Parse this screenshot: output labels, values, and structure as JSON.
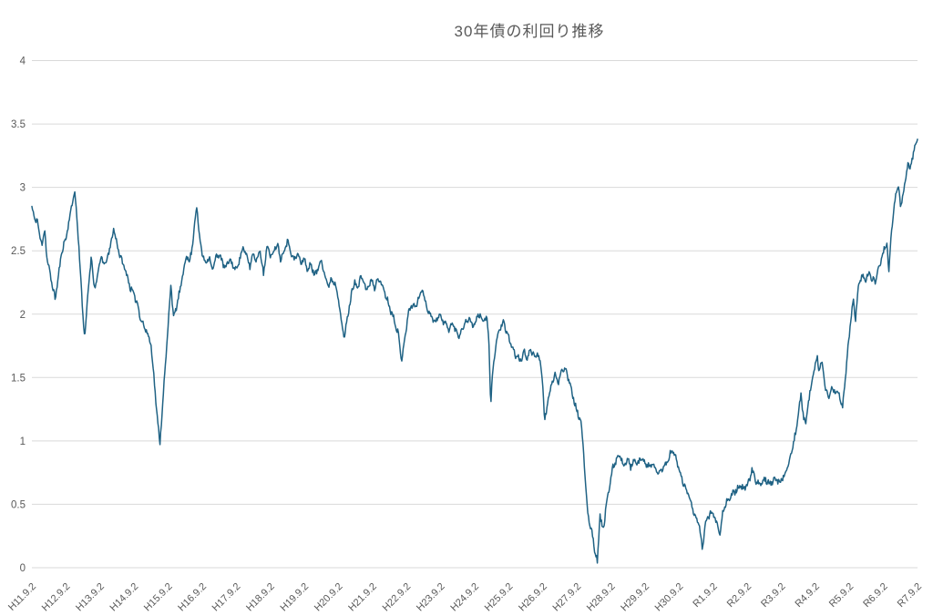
{
  "chart_data": {
    "type": "line",
    "title": "30年債の利回り推移",
    "xlabel": "",
    "ylabel": "",
    "ylim": [
      0,
      4
    ],
    "grid": "horizontal",
    "legend": "none",
    "line_color": "#1F6284",
    "gridline_color": "#D9D9D9",
    "label_color": "#595959",
    "background_color": "#FFFFFF",
    "noise_amplitude": 0.02,
    "y_ticks": [
      0,
      0.5,
      1,
      1.5,
      2,
      2.5,
      3,
      3.5,
      4
    ],
    "y_tick_labels": [
      "0",
      "0.5",
      "1",
      "1.5",
      "2",
      "2.5",
      "3",
      "3.5",
      "4"
    ],
    "x_categories": [
      "H11.9.2",
      "H12.9.2",
      "H13.9.2",
      "H14.9.2",
      "H15.9.2",
      "H16.9.2",
      "H17.9.2",
      "H18.9.2",
      "H19.9.2",
      "H20.9.2",
      "H21.9.2",
      "H22.9.2",
      "H23.9.2",
      "H24.9.2",
      "H25.9.2",
      "H26.9.2",
      "H27.9.2",
      "H28.9.2",
      "H29.9.2",
      "H30.9.2",
      "R1.9.2",
      "R2.9.2",
      "R3.9.2",
      "R4.9.2",
      "R5.9.2",
      "R6.9.2",
      "R7.9.2"
    ],
    "series": [
      {
        "points": [
          [
            0,
            2.85
          ],
          [
            0.08,
            2.74
          ],
          [
            0.15,
            2.76
          ],
          [
            0.22,
            2.62
          ],
          [
            0.3,
            2.56
          ],
          [
            0.38,
            2.66
          ],
          [
            0.45,
            2.42
          ],
          [
            0.55,
            2.3
          ],
          [
            0.62,
            2.2
          ],
          [
            0.68,
            2.12
          ],
          [
            0.78,
            2.3
          ],
          [
            0.88,
            2.5
          ],
          [
            1.0,
            2.6
          ],
          [
            1.1,
            2.75
          ],
          [
            1.2,
            2.9
          ],
          [
            1.25,
            2.97
          ],
          [
            1.32,
            2.78
          ],
          [
            1.42,
            2.35
          ],
          [
            1.5,
            2.0
          ],
          [
            1.55,
            1.78
          ],
          [
            1.65,
            2.2
          ],
          [
            1.75,
            2.45
          ],
          [
            1.85,
            2.18
          ],
          [
            1.95,
            2.35
          ],
          [
            2.05,
            2.45
          ],
          [
            2.15,
            2.38
          ],
          [
            2.25,
            2.48
          ],
          [
            2.32,
            2.55
          ],
          [
            2.4,
            2.68
          ],
          [
            2.5,
            2.55
          ],
          [
            2.6,
            2.45
          ],
          [
            2.7,
            2.38
          ],
          [
            2.8,
            2.3
          ],
          [
            2.9,
            2.2
          ],
          [
            3.0,
            2.15
          ],
          [
            3.1,
            2.08
          ],
          [
            3.2,
            1.96
          ],
          [
            3.3,
            1.9
          ],
          [
            3.4,
            1.84
          ],
          [
            3.5,
            1.76
          ],
          [
            3.6,
            1.45
          ],
          [
            3.7,
            1.12
          ],
          [
            3.76,
            0.99
          ],
          [
            3.84,
            1.3
          ],
          [
            3.92,
            1.6
          ],
          [
            4.0,
            1.9
          ],
          [
            4.08,
            2.25
          ],
          [
            4.16,
            1.96
          ],
          [
            4.26,
            2.08
          ],
          [
            4.36,
            2.2
          ],
          [
            4.46,
            2.35
          ],
          [
            4.54,
            2.48
          ],
          [
            4.62,
            2.4
          ],
          [
            4.7,
            2.52
          ],
          [
            4.78,
            2.72
          ],
          [
            4.84,
            2.86
          ],
          [
            4.92,
            2.6
          ],
          [
            5.0,
            2.48
          ],
          [
            5.1,
            2.4
          ],
          [
            5.2,
            2.46
          ],
          [
            5.3,
            2.35
          ],
          [
            5.4,
            2.44
          ],
          [
            5.5,
            2.48
          ],
          [
            5.6,
            2.4
          ],
          [
            5.7,
            2.36
          ],
          [
            5.8,
            2.44
          ],
          [
            5.9,
            2.38
          ],
          [
            6.0,
            2.35
          ],
          [
            6.1,
            2.44
          ],
          [
            6.2,
            2.52
          ],
          [
            6.3,
            2.46
          ],
          [
            6.4,
            2.38
          ],
          [
            6.5,
            2.48
          ],
          [
            6.6,
            2.42
          ],
          [
            6.7,
            2.52
          ],
          [
            6.8,
            2.3
          ],
          [
            6.9,
            2.55
          ],
          [
            7.0,
            2.45
          ],
          [
            7.1,
            2.5
          ],
          [
            7.2,
            2.56
          ],
          [
            7.3,
            2.44
          ],
          [
            7.4,
            2.5
          ],
          [
            7.5,
            2.58
          ],
          [
            7.6,
            2.5
          ],
          [
            7.7,
            2.42
          ],
          [
            7.8,
            2.48
          ],
          [
            7.9,
            2.4
          ],
          [
            8.0,
            2.44
          ],
          [
            8.1,
            2.34
          ],
          [
            8.2,
            2.4
          ],
          [
            8.3,
            2.3
          ],
          [
            8.4,
            2.36
          ],
          [
            8.5,
            2.44
          ],
          [
            8.6,
            2.3
          ],
          [
            8.7,
            2.22
          ],
          [
            8.8,
            2.28
          ],
          [
            8.9,
            2.24
          ],
          [
            9.0,
            2.14
          ],
          [
            9.1,
            1.9
          ],
          [
            9.18,
            1.82
          ],
          [
            9.28,
            2.0
          ],
          [
            9.38,
            2.15
          ],
          [
            9.48,
            2.28
          ],
          [
            9.55,
            2.18
          ],
          [
            9.65,
            2.3
          ],
          [
            9.75,
            2.25
          ],
          [
            9.85,
            2.18
          ],
          [
            9.95,
            2.28
          ],
          [
            10.05,
            2.2
          ],
          [
            10.15,
            2.28
          ],
          [
            10.25,
            2.25
          ],
          [
            10.35,
            2.18
          ],
          [
            10.45,
            2.1
          ],
          [
            10.55,
            2.02
          ],
          [
            10.65,
            1.95
          ],
          [
            10.75,
            1.85
          ],
          [
            10.85,
            1.63
          ],
          [
            10.95,
            1.82
          ],
          [
            11.05,
            2.0
          ],
          [
            11.15,
            2.08
          ],
          [
            11.25,
            2.05
          ],
          [
            11.35,
            2.12
          ],
          [
            11.45,
            2.2
          ],
          [
            11.55,
            2.1
          ],
          [
            11.65,
            2.02
          ],
          [
            11.75,
            1.97
          ],
          [
            11.85,
            1.94
          ],
          [
            11.95,
            2.0
          ],
          [
            12.05,
            1.95
          ],
          [
            12.15,
            1.92
          ],
          [
            12.25,
            1.88
          ],
          [
            12.35,
            1.93
          ],
          [
            12.45,
            1.86
          ],
          [
            12.55,
            1.83
          ],
          [
            12.65,
            1.9
          ],
          [
            12.75,
            1.94
          ],
          [
            12.85,
            1.97
          ],
          [
            12.95,
            1.9
          ],
          [
            13.05,
            1.96
          ],
          [
            13.15,
            2.0
          ],
          [
            13.25,
            1.94
          ],
          [
            13.35,
            1.98
          ],
          [
            13.42,
            1.76
          ],
          [
            13.47,
            1.29
          ],
          [
            13.55,
            1.62
          ],
          [
            13.65,
            1.8
          ],
          [
            13.75,
            1.9
          ],
          [
            13.85,
            1.93
          ],
          [
            13.95,
            1.84
          ],
          [
            14.05,
            1.78
          ],
          [
            14.15,
            1.7
          ],
          [
            14.25,
            1.66
          ],
          [
            14.35,
            1.63
          ],
          [
            14.45,
            1.7
          ],
          [
            14.55,
            1.66
          ],
          [
            14.65,
            1.72
          ],
          [
            14.75,
            1.66
          ],
          [
            14.85,
            1.7
          ],
          [
            14.92,
            1.62
          ],
          [
            15.0,
            1.44
          ],
          [
            15.05,
            1.14
          ],
          [
            15.15,
            1.32
          ],
          [
            15.25,
            1.44
          ],
          [
            15.35,
            1.52
          ],
          [
            15.45,
            1.46
          ],
          [
            15.55,
            1.56
          ],
          [
            15.65,
            1.58
          ],
          [
            15.72,
            1.52
          ],
          [
            15.8,
            1.46
          ],
          [
            15.88,
            1.36
          ],
          [
            15.95,
            1.28
          ],
          [
            16.05,
            1.2
          ],
          [
            16.12,
            1.14
          ],
          [
            16.2,
            0.9
          ],
          [
            16.28,
            0.55
          ],
          [
            16.35,
            0.38
          ],
          [
            16.45,
            0.27
          ],
          [
            16.52,
            0.15
          ],
          [
            16.6,
            0.04
          ],
          [
            16.68,
            0.42
          ],
          [
            16.72,
            0.35
          ],
          [
            16.78,
            0.3
          ],
          [
            16.85,
            0.48
          ],
          [
            16.95,
            0.62
          ],
          [
            17.05,
            0.78
          ],
          [
            17.15,
            0.85
          ],
          [
            17.25,
            0.88
          ],
          [
            17.38,
            0.81
          ],
          [
            17.48,
            0.85
          ],
          [
            17.58,
            0.8
          ],
          [
            17.68,
            0.84
          ],
          [
            17.78,
            0.81
          ],
          [
            17.88,
            0.86
          ],
          [
            17.98,
            0.83
          ],
          [
            18.1,
            0.8
          ],
          [
            18.2,
            0.82
          ],
          [
            18.3,
            0.77
          ],
          [
            18.4,
            0.74
          ],
          [
            18.5,
            0.78
          ],
          [
            18.6,
            0.81
          ],
          [
            18.7,
            0.86
          ],
          [
            18.78,
            0.93
          ],
          [
            18.88,
            0.88
          ],
          [
            18.98,
            0.8
          ],
          [
            19.1,
            0.68
          ],
          [
            19.2,
            0.62
          ],
          [
            19.3,
            0.56
          ],
          [
            19.4,
            0.47
          ],
          [
            19.5,
            0.39
          ],
          [
            19.6,
            0.32
          ],
          [
            19.68,
            0.14
          ],
          [
            19.76,
            0.33
          ],
          [
            19.84,
            0.4
          ],
          [
            19.94,
            0.44
          ],
          [
            20.04,
            0.4
          ],
          [
            20.14,
            0.33
          ],
          [
            20.2,
            0.28
          ],
          [
            20.3,
            0.46
          ],
          [
            20.4,
            0.52
          ],
          [
            20.5,
            0.55
          ],
          [
            20.6,
            0.59
          ],
          [
            20.7,
            0.62
          ],
          [
            20.8,
            0.64
          ],
          [
            20.9,
            0.62
          ],
          [
            21.0,
            0.65
          ],
          [
            21.08,
            0.7
          ],
          [
            21.14,
            0.78
          ],
          [
            21.24,
            0.68
          ],
          [
            21.34,
            0.66
          ],
          [
            21.44,
            0.68
          ],
          [
            21.54,
            0.7
          ],
          [
            21.64,
            0.67
          ],
          [
            21.74,
            0.68
          ],
          [
            21.84,
            0.7
          ],
          [
            21.94,
            0.67
          ],
          [
            22.04,
            0.7
          ],
          [
            22.14,
            0.76
          ],
          [
            22.24,
            0.85
          ],
          [
            22.34,
            0.96
          ],
          [
            22.44,
            1.08
          ],
          [
            22.52,
            1.26
          ],
          [
            22.58,
            1.35
          ],
          [
            22.66,
            1.18
          ],
          [
            22.72,
            1.14
          ],
          [
            22.8,
            1.32
          ],
          [
            22.9,
            1.46
          ],
          [
            23.0,
            1.62
          ],
          [
            23.06,
            1.66
          ],
          [
            23.12,
            1.55
          ],
          [
            23.2,
            1.62
          ],
          [
            23.3,
            1.4
          ],
          [
            23.4,
            1.33
          ],
          [
            23.5,
            1.42
          ],
          [
            23.6,
            1.39
          ],
          [
            23.7,
            1.37
          ],
          [
            23.8,
            1.26
          ],
          [
            23.9,
            1.55
          ],
          [
            24.0,
            1.85
          ],
          [
            24.06,
            2.0
          ],
          [
            24.12,
            2.12
          ],
          [
            24.18,
            1.96
          ],
          [
            24.26,
            2.2
          ],
          [
            24.36,
            2.3
          ],
          [
            24.46,
            2.27
          ],
          [
            24.56,
            2.32
          ],
          [
            24.66,
            2.28
          ],
          [
            24.76,
            2.25
          ],
          [
            24.86,
            2.36
          ],
          [
            24.96,
            2.46
          ],
          [
            25.04,
            2.52
          ],
          [
            25.1,
            2.56
          ],
          [
            25.16,
            2.34
          ],
          [
            25.22,
            2.62
          ],
          [
            25.3,
            2.8
          ],
          [
            25.38,
            2.98
          ],
          [
            25.44,
            3.0
          ],
          [
            25.5,
            2.85
          ],
          [
            25.58,
            2.95
          ],
          [
            25.66,
            3.08
          ],
          [
            25.72,
            3.2
          ],
          [
            25.78,
            3.14
          ],
          [
            25.84,
            3.22
          ],
          [
            25.9,
            3.3
          ],
          [
            25.95,
            3.33
          ],
          [
            26.0,
            3.38
          ]
        ]
      }
    ]
  }
}
